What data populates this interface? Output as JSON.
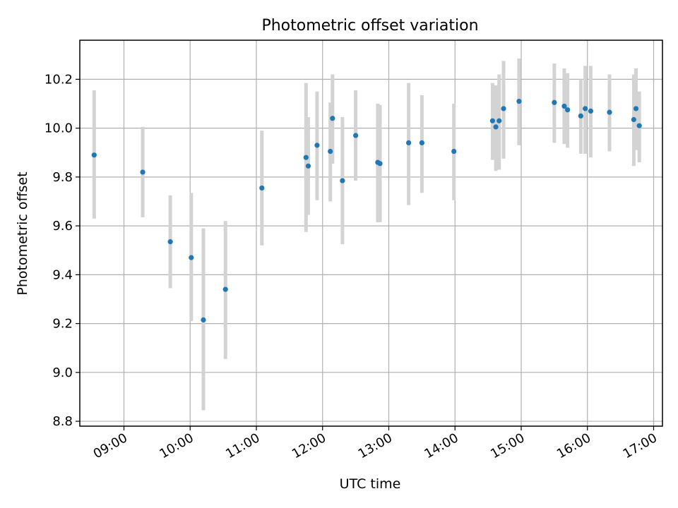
{
  "chart_data": {
    "type": "scatter",
    "title": "Photometric offset variation",
    "xlabel": "UTC time",
    "ylabel": "Photometric offset",
    "grid": true,
    "xlim": [
      "08:20",
      "17:08"
    ],
    "ylim": [
      8.78,
      10.36
    ],
    "x_ticks": [
      "09:00",
      "10:00",
      "11:00",
      "12:00",
      "13:00",
      "14:00",
      "15:00",
      "16:00",
      "17:00"
    ],
    "y_ticks": [
      8.8,
      9.0,
      9.2,
      9.4,
      9.6,
      9.8,
      10.0,
      10.2
    ],
    "y_tick_labels": [
      "8.8",
      "9.0",
      "9.2",
      "9.4",
      "9.6",
      "9.8",
      "10.0",
      "10.2"
    ],
    "colors": {
      "point": "#1f77b4",
      "errorbar": "#d3d3d3"
    },
    "series": [
      {
        "points": [
          {
            "x": "08:33",
            "y": 9.89,
            "ylow": 9.63,
            "yhigh": 10.155
          },
          {
            "x": "09:17",
            "y": 9.82,
            "ylow": 9.635,
            "yhigh": 10.005
          },
          {
            "x": "09:42",
            "y": 9.535,
            "ylow": 9.345,
            "yhigh": 9.725
          },
          {
            "x": "10:01",
            "y": 9.47,
            "ylow": 9.21,
            "yhigh": 9.735
          },
          {
            "x": "10:12",
            "y": 9.215,
            "ylow": 8.845,
            "yhigh": 9.59
          },
          {
            "x": "10:32",
            "y": 9.34,
            "ylow": 9.055,
            "yhigh": 9.62
          },
          {
            "x": "11:05",
            "y": 9.755,
            "ylow": 9.52,
            "yhigh": 9.99
          },
          {
            "x": "11:45",
            "y": 9.88,
            "ylow": 9.575,
            "yhigh": 10.185
          },
          {
            "x": "11:47",
            "y": 9.845,
            "ylow": 9.645,
            "yhigh": 10.045
          },
          {
            "x": "11:55",
            "y": 9.93,
            "ylow": 9.705,
            "yhigh": 10.15
          },
          {
            "x": "12:07",
            "y": 9.905,
            "ylow": 9.7,
            "yhigh": 10.105
          },
          {
            "x": "12:09",
            "y": 10.04,
            "ylow": 9.855,
            "yhigh": 10.22
          },
          {
            "x": "12:18",
            "y": 9.785,
            "ylow": 9.525,
            "yhigh": 10.045
          },
          {
            "x": "12:30",
            "y": 9.97,
            "ylow": 9.785,
            "yhigh": 10.155
          },
          {
            "x": "12:50",
            "y": 9.86,
            "ylow": 9.615,
            "yhigh": 10.1
          },
          {
            "x": "12:52",
            "y": 9.855,
            "ylow": 9.615,
            "yhigh": 10.095
          },
          {
            "x": "13:18",
            "y": 9.94,
            "ylow": 9.685,
            "yhigh": 10.185
          },
          {
            "x": "13:30",
            "y": 9.94,
            "ylow": 9.735,
            "yhigh": 10.135
          },
          {
            "x": "13:59",
            "y": 9.905,
            "ylow": 9.705,
            "yhigh": 10.1
          },
          {
            "x": "14:34",
            "y": 10.03,
            "ylow": 9.87,
            "yhigh": 10.185
          },
          {
            "x": "14:37",
            "y": 10.005,
            "ylow": 9.825,
            "yhigh": 10.175
          },
          {
            "x": "14:40",
            "y": 10.03,
            "ylow": 9.83,
            "yhigh": 10.22
          },
          {
            "x": "14:44",
            "y": 10.08,
            "ylow": 9.875,
            "yhigh": 10.275
          },
          {
            "x": "14:58",
            "y": 10.11,
            "ylow": 9.93,
            "yhigh": 10.285
          },
          {
            "x": "15:30",
            "y": 10.105,
            "ylow": 9.94,
            "yhigh": 10.265
          },
          {
            "x": "15:39",
            "y": 10.09,
            "ylow": 9.935,
            "yhigh": 10.245
          },
          {
            "x": "15:42",
            "y": 10.075,
            "ylow": 9.92,
            "yhigh": 10.225
          },
          {
            "x": "15:54",
            "y": 10.05,
            "ylow": 9.895,
            "yhigh": 10.2
          },
          {
            "x": "15:58",
            "y": 10.08,
            "ylow": 9.895,
            "yhigh": 10.255
          },
          {
            "x": "16:03",
            "y": 10.07,
            "ylow": 9.88,
            "yhigh": 10.255
          },
          {
            "x": "16:20",
            "y": 10.065,
            "ylow": 9.905,
            "yhigh": 10.22
          },
          {
            "x": "16:42",
            "y": 10.035,
            "ylow": 9.845,
            "yhigh": 10.22
          },
          {
            "x": "16:44",
            "y": 10.08,
            "ylow": 9.91,
            "yhigh": 10.245
          },
          {
            "x": "16:47",
            "y": 10.01,
            "ylow": 9.86,
            "yhigh": 10.15
          }
        ]
      }
    ]
  }
}
